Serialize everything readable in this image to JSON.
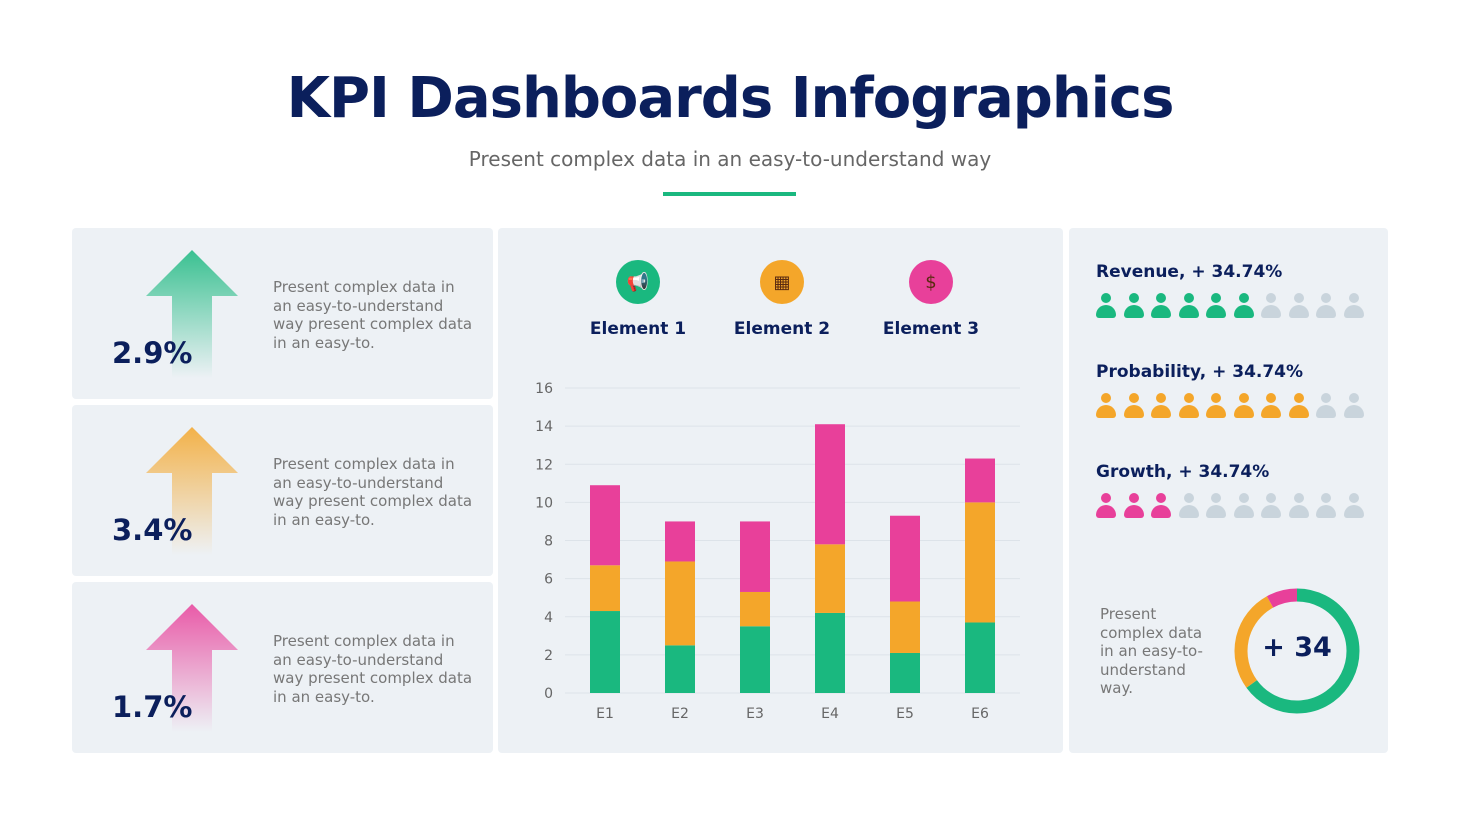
{
  "header": {
    "title": "KPI Dashboards Infographics",
    "subtitle": "Present complex data in an easy-to-understand way"
  },
  "kpis": [
    {
      "value": "2.9%",
      "text": "Present complex data in an easy-to-understand way present complex data in an easy-to.",
      "color": "#1ab87f"
    },
    {
      "value": "3.4%",
      "text": "Present complex data in an easy-to-understand way present complex data in an easy-to.",
      "color": "#f4a62a"
    },
    {
      "value": "1.7%",
      "text": "Present complex data in an easy-to-understand way present complex data in an easy-to.",
      "color": "#e8409a"
    }
  ],
  "elements": [
    {
      "label": "Element 1",
      "icon": "megaphone-icon",
      "color": "#1ab87f"
    },
    {
      "label": "Element 2",
      "icon": "coins-icon",
      "color": "#f4a62a"
    },
    {
      "label": "Element 3",
      "icon": "money-chart-icon",
      "color": "#e8409a"
    }
  ],
  "chart_data": {
    "type": "bar",
    "stacked": true,
    "categories": [
      "E1",
      "E2",
      "E3",
      "E4",
      "E5",
      "E6"
    ],
    "series": [
      {
        "name": "Element 1",
        "color": "#1ab87f",
        "values": [
          4.3,
          2.5,
          3.5,
          4.2,
          2.1,
          3.7
        ]
      },
      {
        "name": "Element 2",
        "color": "#f4a62a",
        "values": [
          2.4,
          4.4,
          1.8,
          3.6,
          2.7,
          6.3
        ]
      },
      {
        "name": "Element 3",
        "color": "#e8409a",
        "values": [
          4.2,
          2.1,
          3.7,
          6.3,
          4.5,
          2.3
        ]
      }
    ],
    "ylim": [
      0,
      16
    ],
    "yticks": [
      0,
      2,
      4,
      6,
      8,
      10,
      12,
      14,
      16
    ],
    "grid": true,
    "xlabel": "",
    "ylabel": ""
  },
  "metrics": [
    {
      "title": "Revenue, + 34.74%",
      "filled": 6,
      "total": 10,
      "color": "#1ab87f"
    },
    {
      "title": "Probability, + 34.74%",
      "filled": 8,
      "total": 10,
      "color": "#f4a62a"
    },
    {
      "title": "Growth, + 34.74%",
      "filled": 3,
      "total": 10,
      "color": "#e8409a"
    }
  ],
  "empty_color": "#c9d4dc",
  "donut": {
    "text": "Present complex data in an easy-to-understand way.",
    "value": "+ 34",
    "segments": [
      {
        "color": "#1ab87f",
        "fraction": 0.65
      },
      {
        "color": "#f4a62a",
        "fraction": 0.27
      },
      {
        "color": "#e8409a",
        "fraction": 0.08
      }
    ]
  }
}
